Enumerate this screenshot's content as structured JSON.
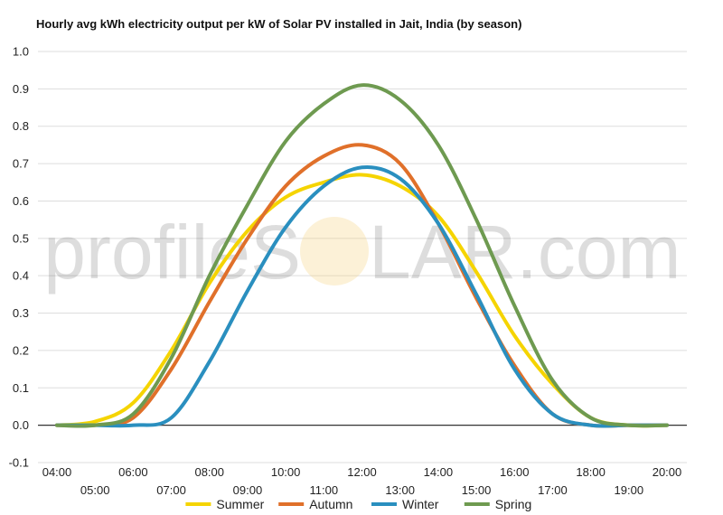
{
  "chart_data": {
    "type": "line",
    "title": "Hourly avg kWh electricity output per kW of Solar PV installed in Jait, India (by season)",
    "xlabel": "",
    "ylabel": "",
    "x": [
      "04:00",
      "05:00",
      "06:00",
      "07:00",
      "08:00",
      "09:00",
      "10:00",
      "11:00",
      "12:00",
      "13:00",
      "14:00",
      "15:00",
      "16:00",
      "17:00",
      "18:00",
      "19:00",
      "20:00"
    ],
    "ylim": [
      -0.1,
      1.0
    ],
    "yticks": [
      "-0.1",
      "0.0",
      "0.1",
      "0.2",
      "0.3",
      "0.4",
      "0.5",
      "0.6",
      "0.7",
      "0.8",
      "0.9",
      "1.0"
    ],
    "grid": true,
    "legend_position": "bottom",
    "watermark": {
      "left": "profileS",
      "right": "LAR.com"
    },
    "series": [
      {
        "name": "Summer",
        "color": "#f5d400",
        "values": [
          0.0,
          0.01,
          0.06,
          0.2,
          0.38,
          0.52,
          0.61,
          0.65,
          0.67,
          0.64,
          0.56,
          0.41,
          0.24,
          0.11,
          0.02,
          0.0,
          0.0
        ]
      },
      {
        "name": "Autumn",
        "color": "#e0702a",
        "values": [
          0.0,
          0.0,
          0.02,
          0.15,
          0.33,
          0.5,
          0.64,
          0.72,
          0.75,
          0.7,
          0.54,
          0.34,
          0.16,
          0.03,
          0.0,
          0.0,
          0.0
        ]
      },
      {
        "name": "Winter",
        "color": "#2a8fbf",
        "values": [
          0.0,
          0.0,
          0.0,
          0.02,
          0.17,
          0.36,
          0.53,
          0.64,
          0.69,
          0.66,
          0.54,
          0.35,
          0.15,
          0.03,
          0.0,
          0.0,
          0.0
        ]
      },
      {
        "name": "Spring",
        "color": "#6e9a50",
        "values": [
          0.0,
          0.0,
          0.03,
          0.18,
          0.4,
          0.59,
          0.76,
          0.86,
          0.91,
          0.87,
          0.75,
          0.55,
          0.32,
          0.12,
          0.02,
          0.0,
          0.0
        ]
      }
    ]
  }
}
